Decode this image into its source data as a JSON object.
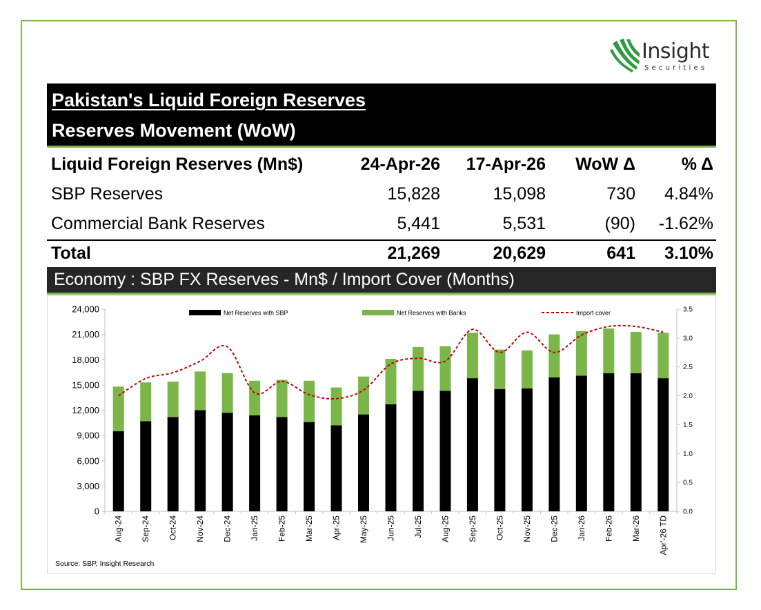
{
  "logo": {
    "word": "Insight",
    "sub": "Securities",
    "brand_color": "#2e9b3f"
  },
  "report": {
    "title": "Pakistan's Liquid Foreign Reserves",
    "subtitle": "Reserves Movement (WoW)"
  },
  "table": {
    "headers": [
      "Liquid Foreign Reserves (Mn$)",
      "24-Apr-26",
      "17-Apr-26",
      "WoW Δ",
      "% Δ"
    ],
    "rows": [
      [
        "SBP Reserves",
        "15,828",
        "15,098",
        "730",
        "4.84%"
      ],
      [
        "Commercial Bank Reserves",
        "5,441",
        "5,531",
        "(90)",
        "-1.62%"
      ]
    ],
    "total": [
      "Total",
      "21,269",
      "20,629",
      "641",
      "3.10%"
    ]
  },
  "chart_section_title": "Economy : SBP FX Reserves - Mn$ / Import Cover (Months)",
  "source": "Source: SBP, Insight Research",
  "colors": {
    "sbp": "#000000",
    "banks": "#7ab648",
    "import_cover": "#c00000",
    "accent_green": "#7ab648"
  },
  "chart_data": {
    "type": "bar",
    "stacked": true,
    "categories": [
      "Aug-24",
      "Sep-24",
      "Oct-24",
      "Nov-24",
      "Dec-24",
      "Jan-25",
      "Feb-25",
      "Mar-25",
      "Apr-25",
      "May-25",
      "Jun-25",
      "Jul-25",
      "Aug-25",
      "Sep-25",
      "Oct-25",
      "Nov-25",
      "Dec-25",
      "Jan-26",
      "Feb-26",
      "Mar-26",
      "Apr'-26 TD"
    ],
    "series": [
      {
        "name": "Net Reserves with SBP",
        "type": "bar",
        "axis": "left",
        "values": [
          9500,
          10700,
          11200,
          12000,
          11700,
          11400,
          11200,
          10600,
          10200,
          11500,
          12700,
          14300,
          14300,
          15800,
          14500,
          14600,
          15900,
          16100,
          16400,
          16400,
          15800
        ]
      },
      {
        "name": "Net Reserves with Banks",
        "type": "bar",
        "axis": "left",
        "values": [
          5300,
          4600,
          4200,
          4600,
          4700,
          4100,
          4400,
          4900,
          4500,
          4500,
          5400,
          5200,
          5300,
          5400,
          4700,
          4500,
          5100,
          5300,
          5300,
          4900,
          5400
        ]
      },
      {
        "name": "Import cover",
        "type": "line",
        "style": "dashed",
        "axis": "right",
        "values": [
          2.0,
          2.3,
          2.4,
          2.6,
          2.85,
          2.05,
          2.25,
          2.02,
          1.95,
          2.1,
          2.55,
          2.65,
          2.6,
          3.15,
          2.75,
          3.1,
          2.75,
          3.05,
          3.2,
          3.2,
          3.1
        ]
      }
    ],
    "y_left": {
      "min": 0,
      "max": 24000,
      "ticks": [
        "0",
        "3,000",
        "6,000",
        "9,000",
        "12,000",
        "15,000",
        "18,000",
        "21,000",
        "24,000"
      ]
    },
    "y_right": {
      "min": 0,
      "max": 3.5,
      "ticks": [
        "0.0",
        "0.5",
        "1.0",
        "1.5",
        "2.0",
        "2.5",
        "3.0",
        "3.5"
      ]
    },
    "legend_position": "top",
    "grid": false
  }
}
